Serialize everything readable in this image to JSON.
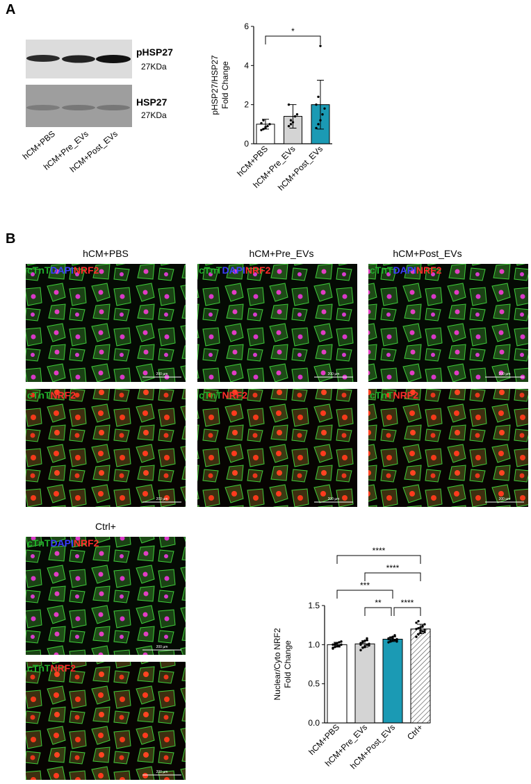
{
  "panel_labels": [
    "A",
    "B"
  ],
  "blot": {
    "bands": [
      {
        "name": "pHSP27",
        "size": "27KDa"
      },
      {
        "name": "HSP27",
        "size": "27KDa"
      }
    ],
    "lanes": [
      "hCM+PBS",
      "hCM+Pre_EVs",
      "hCM+Post_EVs"
    ]
  },
  "images": {
    "titles": [
      "hCM+PBS",
      "hCM+Pre_EVs",
      "hCM+Post_EVs",
      "Ctrl+"
    ],
    "stain_sets": [
      [
        {
          "text": "cTnT",
          "color": "#1fae2a"
        },
        {
          "text": "DAPI",
          "color": "#3b3bff"
        },
        {
          "text": "NRF2",
          "color": "#ff2b2b"
        }
      ],
      [
        {
          "text": "cTnT",
          "color": "#1fae2a"
        },
        {
          "text": "NRF2",
          "color": "#ff2b2b"
        }
      ]
    ],
    "scale_bar": "200 µm"
  },
  "chart_data": [
    {
      "type": "bar",
      "ylabel": [
        "pHSP27/HSP27",
        "Fold Change"
      ],
      "categories": [
        "hCM+PBS",
        "hCM+Pre_EVs",
        "hCM+Post_EVs"
      ],
      "values": [
        1.0,
        1.4,
        2.0
      ],
      "errors": [
        0.25,
        0.6,
        1.25
      ],
      "colors": [
        "#ffffff",
        "#d4d4d4",
        "#1b9ab4"
      ],
      "hatch": [
        false,
        false,
        false
      ],
      "points": [
        [
          0.7,
          0.75,
          0.8,
          0.9,
          1.0,
          1.05,
          1.2,
          0.85
        ],
        [
          0.9,
          1.0,
          1.1,
          1.4,
          1.5,
          2.0,
          1.2
        ],
        [
          0.8,
          1.0,
          1.2,
          1.5,
          1.8,
          2.0,
          2.4,
          5.0
        ]
      ],
      "ylim": [
        0,
        6
      ],
      "yticks": [
        0,
        2,
        4,
        6
      ],
      "comparisons": [
        {
          "groups": [
            0,
            2
          ],
          "label": "*"
        }
      ]
    },
    {
      "type": "bar",
      "ylabel": [
        "Nuclear/Cyto NRF2",
        "Fold Change"
      ],
      "categories": [
        "hCM+PBS",
        "hCM+Pre_EVs",
        "hCM+Post_EVs",
        "Ctrl+"
      ],
      "values": [
        1.0,
        1.01,
        1.07,
        1.2
      ],
      "errors": [
        0.03,
        0.04,
        0.03,
        0.06
      ],
      "colors": [
        "#ffffff",
        "#d4d4d4",
        "#1b9ab4",
        "#ffffff"
      ],
      "hatch": [
        false,
        false,
        false,
        true
      ],
      "points": [
        [
          0.95,
          0.97,
          0.98,
          0.99,
          1.0,
          1.0,
          1.01,
          1.02,
          1.03,
          1.04,
          0.96,
          1.0,
          1.02,
          0.98
        ],
        [
          0.93,
          0.96,
          0.98,
          1.0,
          1.01,
          1.02,
          1.03,
          1.05,
          1.06,
          0.99,
          1.0,
          1.04,
          0.97,
          1.08
        ],
        [
          1.03,
          1.04,
          1.05,
          1.06,
          1.07,
          1.08,
          1.09,
          1.1,
          1.11,
          1.06,
          1.07,
          1.05,
          1.08,
          1.12,
          1.04
        ],
        [
          1.1,
          1.13,
          1.15,
          1.17,
          1.19,
          1.2,
          1.21,
          1.22,
          1.24,
          1.26,
          1.28,
          1.3,
          1.18,
          1.23,
          1.16
        ]
      ],
      "ylim": [
        0,
        1.5
      ],
      "yticks": [
        {
          "value": 0,
          "label": "0.0"
        },
        0.5,
        {
          "value": 1,
          "label": "1.0"
        },
        1.5
      ],
      "comparisons": [
        {
          "groups": [
            0,
            3
          ],
          "label": "****"
        },
        {
          "groups": [
            1,
            3
          ],
          "label": "****"
        },
        {
          "groups": [
            0,
            2
          ],
          "label": "***"
        },
        {
          "groups": [
            1,
            2
          ],
          "label": "**"
        },
        {
          "groups": [
            2,
            3
          ],
          "label": "****"
        }
      ]
    }
  ]
}
